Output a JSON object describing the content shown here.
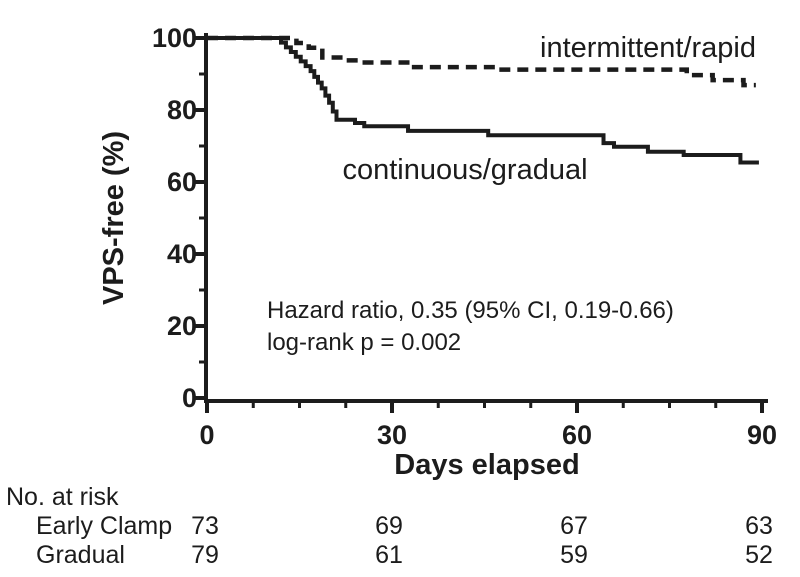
{
  "figure": {
    "background": "#ffffff",
    "ink_color": "#1c1c1c"
  },
  "chart_data": {
    "type": "line",
    "subtype": "kaplan-meier-step",
    "title": "",
    "xlabel": "Days elapsed",
    "ylabel": "VPS-free (%)",
    "xlim": [
      0,
      90
    ],
    "ylim": [
      0,
      100
    ],
    "x_ticks": [
      0,
      30,
      60,
      90
    ],
    "y_ticks": [
      0,
      20,
      40,
      60,
      80,
      100
    ],
    "x_minor_step": 7.5,
    "y_minor_step": 10,
    "grid": false,
    "legend_position": "inline-labels",
    "series": [
      {
        "name": "intermittent/rapid",
        "style": "dashed",
        "start_value": 100,
        "steps": [
          [
            14.5,
            98.6
          ],
          [
            16.5,
            97.3
          ],
          [
            18.7,
            94.6
          ],
          [
            22,
            93.8
          ],
          [
            25,
            93.2
          ],
          [
            33,
            91.9
          ],
          [
            47,
            91.2
          ],
          [
            77.8,
            89.7
          ],
          [
            82,
            88.3
          ],
          [
            87,
            86.9
          ]
        ],
        "end_day": 89
      },
      {
        "name": "continuous/gradual",
        "style": "solid",
        "start_value": 100,
        "steps": [
          [
            12,
            98.7
          ],
          [
            12.8,
            97.4
          ],
          [
            13.6,
            96.1
          ],
          [
            14.4,
            94.8
          ],
          [
            15.2,
            93.5
          ],
          [
            16,
            92.2
          ],
          [
            16.8,
            90.8
          ],
          [
            17.4,
            89.2
          ],
          [
            18,
            87.6
          ],
          [
            18.6,
            86
          ],
          [
            19.2,
            84
          ],
          [
            19.8,
            82
          ],
          [
            20.4,
            79.6
          ],
          [
            21,
            77.3
          ],
          [
            24,
            76.4
          ],
          [
            25.5,
            75.5
          ],
          [
            32.6,
            74.2
          ],
          [
            45.6,
            73
          ],
          [
            64.3,
            70.8
          ],
          [
            66,
            69.8
          ],
          [
            71.5,
            68.4
          ],
          [
            77.3,
            67.5
          ],
          [
            86.5,
            65.4
          ]
        ],
        "end_day": 89.5
      }
    ],
    "annotation": {
      "line1": "Hazard ratio, 0.35 (95% CI, 0.19-0.66)",
      "line2": "log-rank p = 0.002"
    }
  },
  "risk_table": {
    "title": "No. at risk",
    "time_points": [
      0,
      30,
      60,
      90
    ],
    "rows": [
      {
        "label": "Early Clamp",
        "counts": [
          "73",
          "69",
          "67",
          "63"
        ]
      },
      {
        "label": "Gradual",
        "counts": [
          "79",
          "61",
          "59",
          "52"
        ]
      }
    ]
  }
}
